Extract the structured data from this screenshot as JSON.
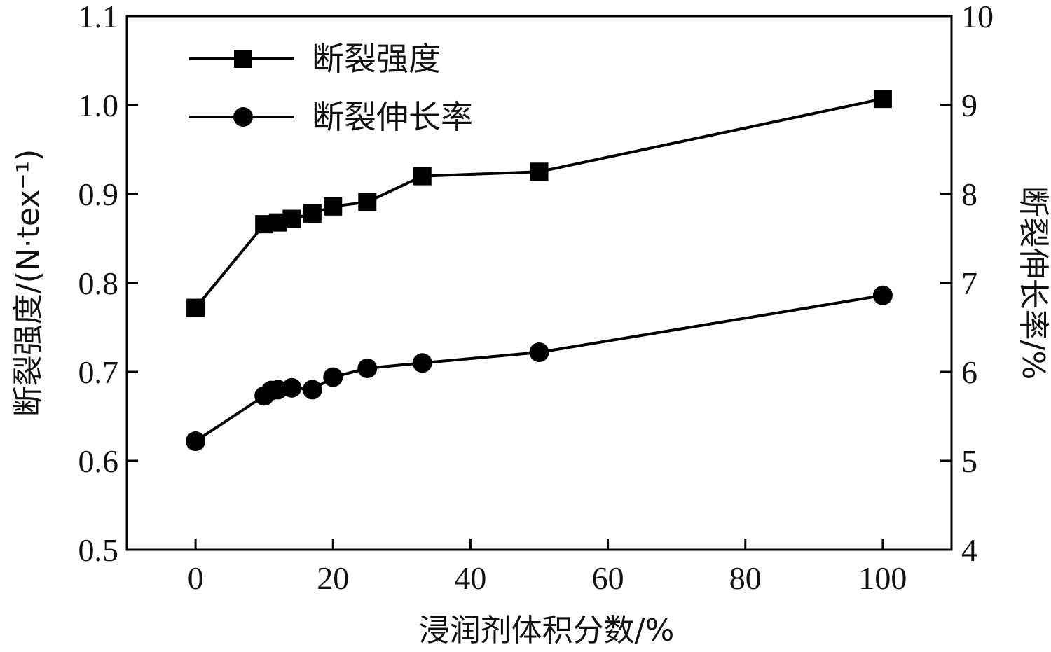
{
  "chart_data": {
    "type": "line",
    "xlabel": "浸润剂体积分数/%",
    "ylabel_left": "断裂强度/(N·tex⁻¹)",
    "ylabel_right": "断裂伸长率/%",
    "xlim": [
      -10,
      110
    ],
    "ylim_left": [
      0.5,
      1.1
    ],
    "ylim_right": [
      4,
      10
    ],
    "x_ticks": [
      0,
      20,
      40,
      60,
      80,
      100
    ],
    "y_ticks_left": [
      "0.5",
      "0.6",
      "0.7",
      "0.8",
      "0.9",
      "1.0",
      "1.1"
    ],
    "y_ticks_right": [
      "4",
      "5",
      "6",
      "7",
      "8",
      "9",
      "10"
    ],
    "grid": false,
    "legend_position": "top-left",
    "series": [
      {
        "name": "断裂强度",
        "axis": "left",
        "marker": "square",
        "x": [
          0,
          10,
          12,
          14,
          17,
          20,
          25,
          33,
          50,
          100
        ],
        "values": [
          0.772,
          0.866,
          0.868,
          0.872,
          0.878,
          0.886,
          0.891,
          0.92,
          0.925,
          1.007
        ]
      },
      {
        "name": "断裂伸长率",
        "axis": "right",
        "marker": "circle",
        "x": [
          0,
          10,
          11,
          12,
          14,
          17,
          20,
          25,
          33,
          50,
          100
        ],
        "values": [
          5.22,
          5.73,
          5.79,
          5.8,
          5.82,
          5.8,
          5.94,
          6.04,
          6.1,
          6.22,
          6.86
        ]
      }
    ],
    "colors": {
      "line": "#000000",
      "axis": "#000000",
      "background": "#ffffff"
    }
  }
}
